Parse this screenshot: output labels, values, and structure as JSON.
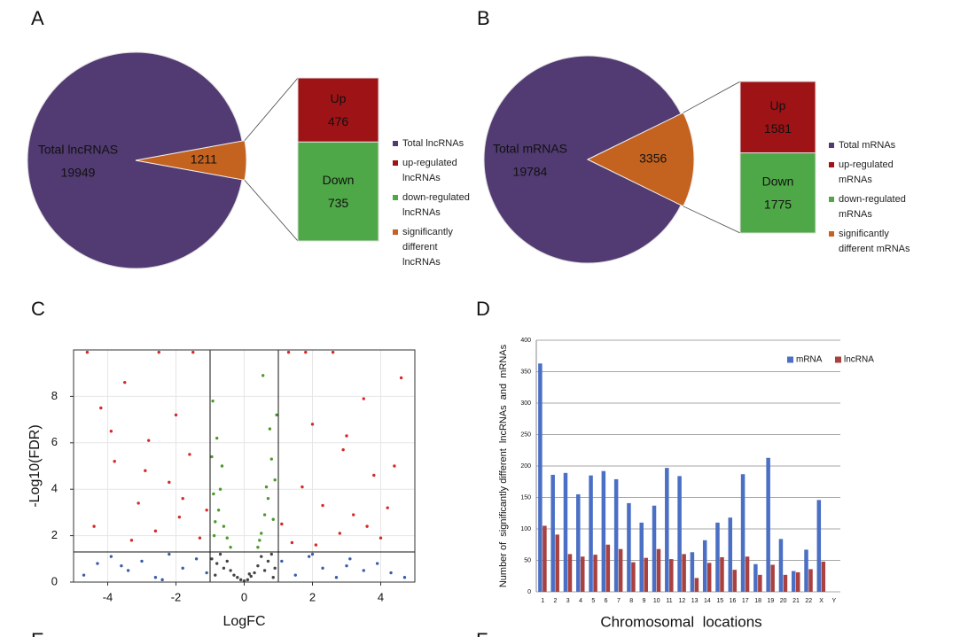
{
  "chart_data": [
    {
      "panel": "A",
      "type": "pie",
      "categories": [
        "Total lncRNAS",
        null
      ],
      "values": [
        19949,
        1211
      ],
      "colors": [
        "#523a72",
        "#c4621f"
      ],
      "breakdown": {
        "categories": [
          "Up",
          "Down"
        ],
        "values": [
          476,
          735
        ],
        "colors": [
          "#9e1316",
          "#4fa848"
        ]
      },
      "legend": [
        {
          "name": "Total lncRNAs",
          "color": "#523a72"
        },
        {
          "name": "up-regulated lncRNAs",
          "color": "#9e1316"
        },
        {
          "name": "down-regulated lncRNAs",
          "color": "#4fa848"
        },
        {
          "name": "significantly different lncRNAs",
          "color": "#c4621f"
        }
      ]
    },
    {
      "panel": "B",
      "type": "pie",
      "categories": [
        "Total mRNAS",
        null
      ],
      "values": [
        19784,
        3356
      ],
      "colors": [
        "#523a72",
        "#c4621f"
      ],
      "breakdown": {
        "categories": [
          "Up",
          "Down"
        ],
        "values": [
          1581,
          1775
        ],
        "colors": [
          "#9e1316",
          "#4fa848"
        ]
      },
      "legend": [
        {
          "name": "Total mRNAs",
          "color": "#523a72"
        },
        {
          "name": "up-regulated mRNAs",
          "color": "#9e1316"
        },
        {
          "name": "down-regulated mRNAs",
          "color": "#4fa848"
        },
        {
          "name": "significantly different mRNAs",
          "color": "#c4621f"
        }
      ]
    },
    {
      "panel": "C",
      "type": "scatter",
      "xlabel": "LogFC",
      "ylabel": "-Log10(FDR)",
      "xlim": [
        -5,
        5
      ],
      "ylim": [
        0,
        10
      ],
      "xticks": [
        -4,
        -2,
        0,
        2,
        4
      ],
      "yticks": [
        0,
        2,
        4,
        6,
        8
      ],
      "grid": true,
      "thresholds_x": [
        -1,
        1
      ],
      "threshold_y": 1.3,
      "series": [
        {
          "color": "#d42a2a",
          "x": [
            -4.6,
            -4.2,
            -3.8,
            -3.5,
            -3.1,
            -2.8,
            -2.5,
            -2.2,
            -1.9,
            -1.6,
            -1.3,
            -1.1,
            -4.4,
            -3.3,
            -2.6,
            -2.0,
            -1.5,
            -3.9,
            -2.9,
            -1.8,
            1.1,
            1.4,
            1.7,
            2.0,
            2.3,
            2.6,
            2.9,
            3.2,
            3.5,
            3.8,
            4.2,
            4.6,
            1.3,
            2.1,
            2.8,
            3.6,
            4.4,
            1.8,
            3.0,
            4.0
          ],
          "y": [
            9.9,
            7.5,
            5.2,
            8.6,
            3.4,
            6.1,
            9.9,
            4.3,
            2.8,
            5.5,
            1.9,
            3.1,
            2.4,
            1.8,
            2.2,
            7.2,
            9.9,
            6.5,
            4.8,
            3.6,
            2.5,
            1.7,
            4.1,
            6.8,
            3.3,
            9.9,
            5.7,
            2.9,
            7.9,
            4.6,
            3.2,
            8.8,
            9.9,
            1.6,
            2.1,
            2.4,
            5.0,
            9.9,
            6.3,
            1.9
          ]
        },
        {
          "color": "#4c9a2a",
          "x": [
            -0.95,
            -0.9,
            -0.85,
            -0.8,
            -0.7,
            -0.6,
            -0.5,
            -0.4,
            -0.92,
            -0.75,
            -0.65,
            -0.88,
            0.4,
            0.5,
            0.6,
            0.7,
            0.8,
            0.9,
            0.95,
            0.45,
            0.75,
            0.85,
            0.65,
            0.55
          ],
          "y": [
            5.4,
            3.8,
            2.6,
            6.2,
            4.0,
            2.4,
            1.9,
            1.5,
            7.8,
            3.1,
            5.0,
            2.0,
            1.5,
            2.1,
            2.9,
            3.6,
            5.3,
            4.4,
            7.2,
            1.8,
            6.6,
            2.7,
            4.1,
            8.9
          ]
        },
        {
          "color": "#3a5ca8",
          "x": [
            -4.7,
            -4.3,
            -3.9,
            -3.4,
            -3.0,
            -2.6,
            -2.2,
            -1.8,
            -1.4,
            -1.1,
            -3.6,
            -2.4,
            1.1,
            1.5,
            1.9,
            2.3,
            2.7,
            3.1,
            3.5,
            3.9,
            4.3,
            4.7,
            2.0,
            3.0
          ],
          "y": [
            0.3,
            0.8,
            1.1,
            0.5,
            0.9,
            0.2,
            1.2,
            0.6,
            1.0,
            0.4,
            0.7,
            0.1,
            0.9,
            0.3,
            1.1,
            0.6,
            0.2,
            1.0,
            0.5,
            0.8,
            0.4,
            0.2,
            1.2,
            0.7
          ]
        },
        {
          "color": "#444444",
          "x": [
            -0.95,
            -0.8,
            -0.7,
            -0.6,
            -0.5,
            -0.4,
            -0.3,
            -0.2,
            -0.1,
            0,
            0.1,
            0.2,
            0.3,
            0.4,
            0.5,
            0.6,
            0.7,
            0.8,
            0.9,
            -0.85,
            0.85,
            0.15
          ],
          "y": [
            1.0,
            0.8,
            1.2,
            0.6,
            0.9,
            0.5,
            0.3,
            0.2,
            0.1,
            0.05,
            0.1,
            0.25,
            0.4,
            0.7,
            1.1,
            0.5,
            0.9,
            1.2,
            0.6,
            0.3,
            0.2,
            0.35
          ]
        }
      ]
    },
    {
      "panel": "D",
      "type": "bar",
      "xlabel": "Chromosomal  locations",
      "ylabel": "Number of  significantly different  lncRNAs  and  mRNAs",
      "categories": [
        "1",
        "2",
        "3",
        "4",
        "5",
        "6",
        "7",
        "8",
        "9",
        "10",
        "11",
        "12",
        "13",
        "14",
        "15",
        "16",
        "17",
        "18",
        "19",
        "20",
        "21",
        "22",
        "X",
        "Y"
      ],
      "ylim": [
        0,
        400
      ],
      "yticks": [
        0,
        50,
        100,
        150,
        200,
        250,
        300,
        350,
        400
      ],
      "grid": true,
      "legend_position": "upper right",
      "series": [
        {
          "name": "mRNA",
          "color": "#4a6fc4",
          "values": [
            363,
            186,
            189,
            155,
            185,
            192,
            179,
            141,
            110,
            137,
            197,
            184,
            63,
            82,
            110,
            118,
            187,
            44,
            213,
            84,
            33,
            67,
            146,
            0
          ]
        },
        {
          "name": "lncRNA",
          "color": "#a8413f",
          "values": [
            105,
            91,
            60,
            56,
            59,
            75,
            68,
            47,
            54,
            68,
            52,
            60,
            22,
            46,
            55,
            35,
            56,
            27,
            43,
            27,
            31,
            36,
            48,
            0
          ]
        }
      ]
    }
  ],
  "next_panels": [
    "E",
    "F"
  ]
}
